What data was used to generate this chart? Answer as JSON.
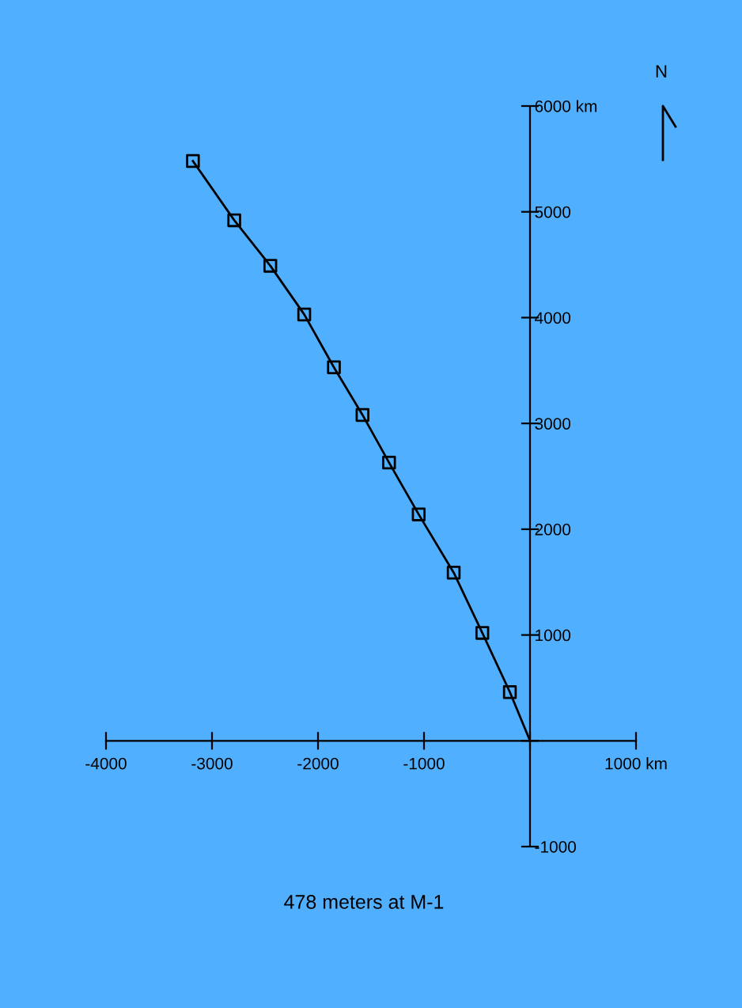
{
  "chart_data": {
    "type": "line",
    "series": [
      {
        "color": "#000000",
        "marker": "none",
        "x": [
          -3180,
          -2790,
          -2450,
          -2130,
          -1850,
          -1580,
          -1330,
          -1050,
          -720,
          -450,
          -190,
          0
        ],
        "values": [
          5480,
          4920,
          4490,
          4030,
          3530,
          3080,
          2630,
          2140,
          1590,
          1020,
          460,
          0
        ]
      },
      {
        "type": "scatter",
        "color": "#000000",
        "marker": "square",
        "x": [
          -3180,
          -2790,
          -2450,
          -2130,
          -1850,
          -1580,
          -1330,
          -1050,
          -720,
          -450,
          -190
        ],
        "values": [
          5480,
          4920,
          4490,
          4030,
          3530,
          3080,
          2630,
          2140,
          1590,
          1020,
          460
        ]
      }
    ],
    "xlim": [
      -4000,
      1000
    ],
    "ylim": [
      -1000,
      6000
    ],
    "xticks": [
      -4000,
      -3000,
      -2000,
      -1000,
      {
        "value": 0,
        "label": null
      },
      {
        "value": 1000,
        "label": "1000 km"
      }
    ],
    "yticks": [
      -1000,
      {
        "value": 0,
        "label": null
      },
      1000,
      2000,
      3000,
      4000,
      5000,
      {
        "value": 6000,
        "label": "6000 km"
      }
    ],
    "grid": false,
    "legend": false,
    "annotations": [
      "N",
      "478 meters at M-1"
    ]
  }
}
